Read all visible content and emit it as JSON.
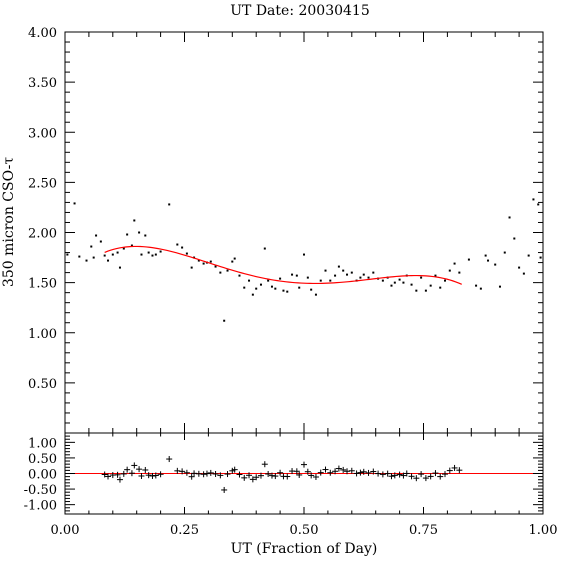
{
  "chart_data": {
    "type": "scatter",
    "title": "UT Date: 20030415",
    "xlabel": "UT (Fraction of Day)",
    "ylabel": "350 micron CSO-τ",
    "xlim": [
      0,
      1
    ],
    "ylim": [
      0,
      4
    ],
    "xticks": [
      "0.00",
      "0.25",
      "0.50",
      "0.75",
      "1.00"
    ],
    "yticks": [
      "0.50",
      "1.00",
      "1.50",
      "2.00",
      "2.50",
      "3.00",
      "3.50",
      "4.00"
    ],
    "residual_ylim": [
      -1.3,
      1.3
    ],
    "residual_yticks": [
      "1.00",
      "0.50",
      "0.00",
      "-0.50",
      "-1.00"
    ],
    "fit_color": "#ff0000",
    "point_color": "#000000",
    "points": [
      [
        0.005,
        1.78
      ],
      [
        0.02,
        2.29
      ],
      [
        0.03,
        1.76
      ],
      [
        0.045,
        1.72
      ],
      [
        0.055,
        1.86
      ],
      [
        0.06,
        1.75
      ],
      [
        0.065,
        1.97
      ],
      [
        0.075,
        1.91
      ],
      [
        0.083,
        1.77
      ],
      [
        0.09,
        1.72
      ],
      [
        0.1,
        1.78
      ],
      [
        0.11,
        1.8
      ],
      [
        0.115,
        1.65
      ],
      [
        0.123,
        1.84
      ],
      [
        0.13,
        1.98
      ],
      [
        0.14,
        1.87
      ],
      [
        0.145,
        2.12
      ],
      [
        0.155,
        2.0
      ],
      [
        0.16,
        1.78
      ],
      [
        0.168,
        1.97
      ],
      [
        0.175,
        1.8
      ],
      [
        0.183,
        1.77
      ],
      [
        0.19,
        1.78
      ],
      [
        0.2,
        1.81
      ],
      [
        0.218,
        2.28
      ],
      [
        0.235,
        1.88
      ],
      [
        0.245,
        1.85
      ],
      [
        0.255,
        1.79
      ],
      [
        0.265,
        1.65
      ],
      [
        0.27,
        1.75
      ],
      [
        0.28,
        1.72
      ],
      [
        0.29,
        1.69
      ],
      [
        0.297,
        1.7
      ],
      [
        0.305,
        1.71
      ],
      [
        0.315,
        1.66
      ],
      [
        0.325,
        1.6
      ],
      [
        0.333,
        1.12
      ],
      [
        0.34,
        1.62
      ],
      [
        0.35,
        1.71
      ],
      [
        0.355,
        1.74
      ],
      [
        0.365,
        1.57
      ],
      [
        0.375,
        1.45
      ],
      [
        0.385,
        1.52
      ],
      [
        0.393,
        1.38
      ],
      [
        0.4,
        1.44
      ],
      [
        0.41,
        1.48
      ],
      [
        0.418,
        1.84
      ],
      [
        0.425,
        1.52
      ],
      [
        0.433,
        1.46
      ],
      [
        0.44,
        1.44
      ],
      [
        0.45,
        1.54
      ],
      [
        0.457,
        1.42
      ],
      [
        0.465,
        1.41
      ],
      [
        0.475,
        1.58
      ],
      [
        0.485,
        1.57
      ],
      [
        0.49,
        1.45
      ],
      [
        0.5,
        1.78
      ],
      [
        0.508,
        1.55
      ],
      [
        0.515,
        1.43
      ],
      [
        0.525,
        1.38
      ],
      [
        0.535,
        1.52
      ],
      [
        0.545,
        1.62
      ],
      [
        0.555,
        1.52
      ],
      [
        0.565,
        1.57
      ],
      [
        0.573,
        1.66
      ],
      [
        0.582,
        1.62
      ],
      [
        0.59,
        1.58
      ],
      [
        0.6,
        1.6
      ],
      [
        0.61,
        1.52
      ],
      [
        0.618,
        1.55
      ],
      [
        0.625,
        1.58
      ],
      [
        0.635,
        1.55
      ],
      [
        0.645,
        1.6
      ],
      [
        0.655,
        1.54
      ],
      [
        0.665,
        1.52
      ],
      [
        0.675,
        1.55
      ],
      [
        0.683,
        1.47
      ],
      [
        0.69,
        1.5
      ],
      [
        0.7,
        1.53
      ],
      [
        0.708,
        1.5
      ],
      [
        0.715,
        1.57
      ],
      [
        0.725,
        1.48
      ],
      [
        0.735,
        1.42
      ],
      [
        0.745,
        1.55
      ],
      [
        0.755,
        1.42
      ],
      [
        0.765,
        1.47
      ],
      [
        0.775,
        1.57
      ],
      [
        0.785,
        1.45
      ],
      [
        0.795,
        1.52
      ],
      [
        0.805,
        1.62
      ],
      [
        0.815,
        1.69
      ],
      [
        0.825,
        1.6
      ],
      [
        0.845,
        1.73
      ],
      [
        0.86,
        1.47
      ],
      [
        0.87,
        1.44
      ],
      [
        0.88,
        1.77
      ],
      [
        0.885,
        1.72
      ],
      [
        0.9,
        1.68
      ],
      [
        0.91,
        1.46
      ],
      [
        0.92,
        1.8
      ],
      [
        0.93,
        2.15
      ],
      [
        0.94,
        1.94
      ],
      [
        0.95,
        1.65
      ],
      [
        0.96,
        1.59
      ],
      [
        0.97,
        1.77
      ],
      [
        0.98,
        2.33
      ],
      [
        0.99,
        2.28
      ],
      [
        0.995,
        1.75
      ]
    ],
    "fit_range": [
      0.083,
      0.83
    ]
  }
}
